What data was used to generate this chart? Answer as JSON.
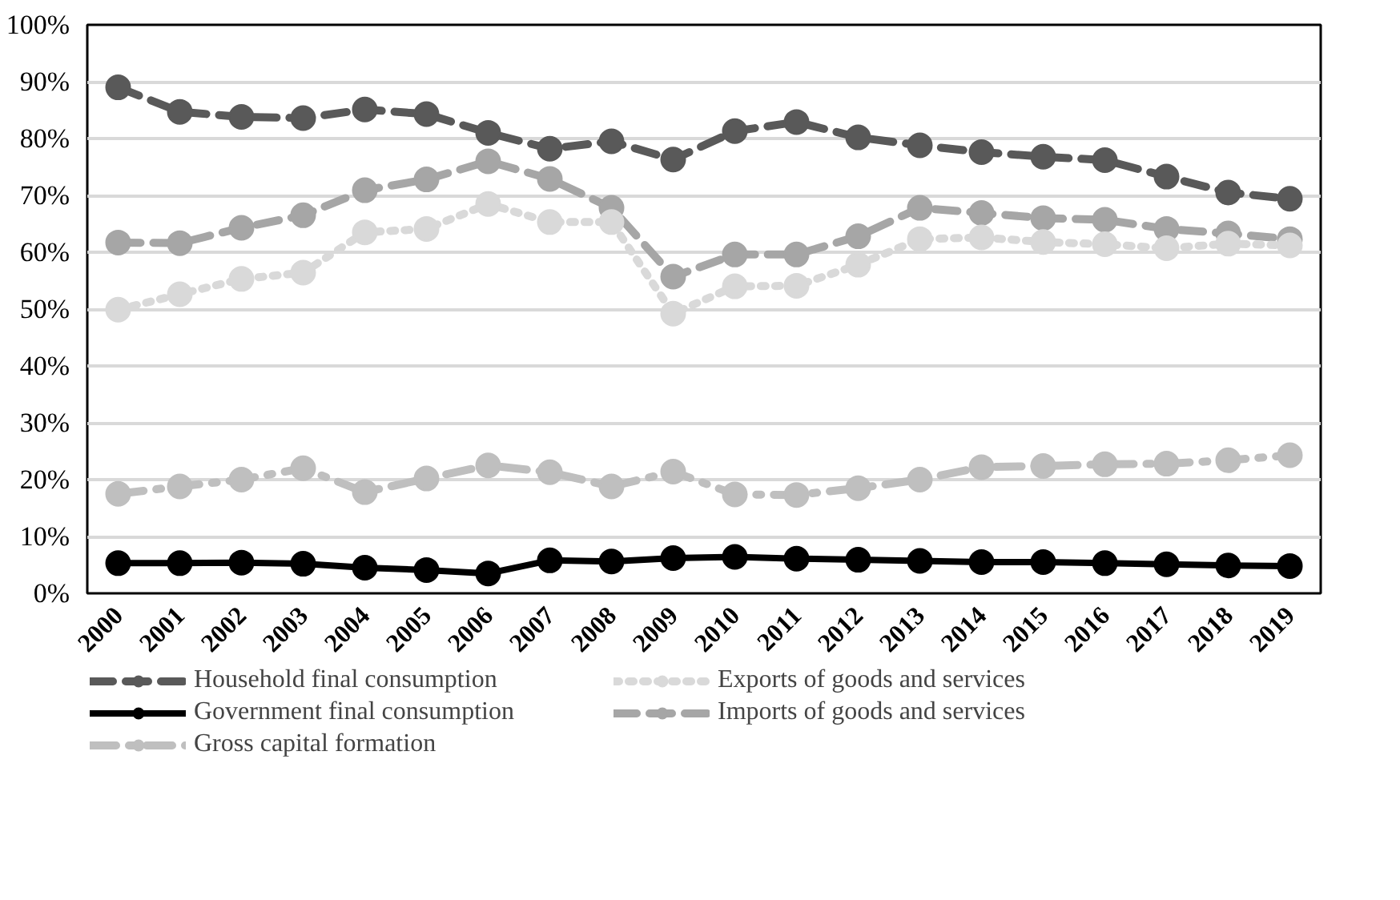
{
  "chart_data": {
    "type": "line",
    "categories": [
      "2000",
      "2001",
      "2002",
      "2003",
      "2004",
      "2005",
      "2006",
      "2007",
      "2008",
      "2009",
      "2010",
      "2011",
      "2012",
      "2013",
      "2014",
      "2015",
      "2016",
      "2017",
      "2018",
      "2019"
    ],
    "series": [
      {
        "name": "Household final consumption",
        "color": "#595959",
        "line_style": "dashed",
        "values": [
          89,
          84.7,
          83.8,
          83.6,
          85.1,
          84.3,
          81,
          78.2,
          79.5,
          76.3,
          81.3,
          82.9,
          80.2,
          78.8,
          77.6,
          76.8,
          76.2,
          73.3,
          70.5,
          69.4
        ]
      },
      {
        "name": "Government final consumption",
        "color": "#000000",
        "line_style": "solid",
        "values": [
          5.3,
          5.3,
          5.4,
          5.2,
          4.5,
          4.1,
          3.5,
          5.8,
          5.6,
          6.2,
          6.4,
          6.1,
          5.9,
          5.7,
          5.5,
          5.5,
          5.3,
          5.1,
          4.9,
          4.8
        ]
      },
      {
        "name": "Gross capital formation",
        "color": "#bfbfbf",
        "line_style": "dashdot",
        "values": [
          17.5,
          18.8,
          20,
          22,
          17.8,
          20.2,
          22.5,
          21.3,
          18.8,
          21.4,
          17.4,
          17.3,
          18.5,
          20,
          22.2,
          22.4,
          22.7,
          22.8,
          23.4,
          24.3
        ]
      },
      {
        "name": "Exports of goods and services",
        "color": "#d9d9d9",
        "line_style": "dotted",
        "values": [
          49.9,
          52.6,
          55.3,
          56.4,
          63.5,
          64.1,
          68.5,
          65.3,
          65.3,
          49.2,
          54,
          54.1,
          57.8,
          62.3,
          62.6,
          61.8,
          61.4,
          60.7,
          61.5,
          61.2
        ]
      },
      {
        "name": "Imports of goods and services",
        "color": "#a6a6a6",
        "line_style": "dashed",
        "values": [
          61.7,
          61.6,
          64.3,
          66.5,
          70.9,
          72.8,
          76,
          72.9,
          67.8,
          55.7,
          59.6,
          59.6,
          62.8,
          67.8,
          66.9,
          66,
          65.7,
          64.1,
          63.3,
          62.3
        ]
      }
    ],
    "ylim": [
      0,
      100
    ],
    "yticks": [
      {
        "value": 0,
        "label": "0%"
      },
      {
        "value": 10,
        "label": "10%"
      },
      {
        "value": 20,
        "label": "20%"
      },
      {
        "value": 30,
        "label": "30%"
      },
      {
        "value": 40,
        "label": "40%"
      },
      {
        "value": 50,
        "label": "50%"
      },
      {
        "value": 60,
        "label": "60%"
      },
      {
        "value": 70,
        "label": "70%"
      },
      {
        "value": 80,
        "label": "80%"
      },
      {
        "value": 90,
        "label": "90%"
      },
      {
        "value": 100,
        "label": "100%"
      }
    ],
    "grid": "y",
    "legend": "bottom",
    "marker": "circle"
  }
}
